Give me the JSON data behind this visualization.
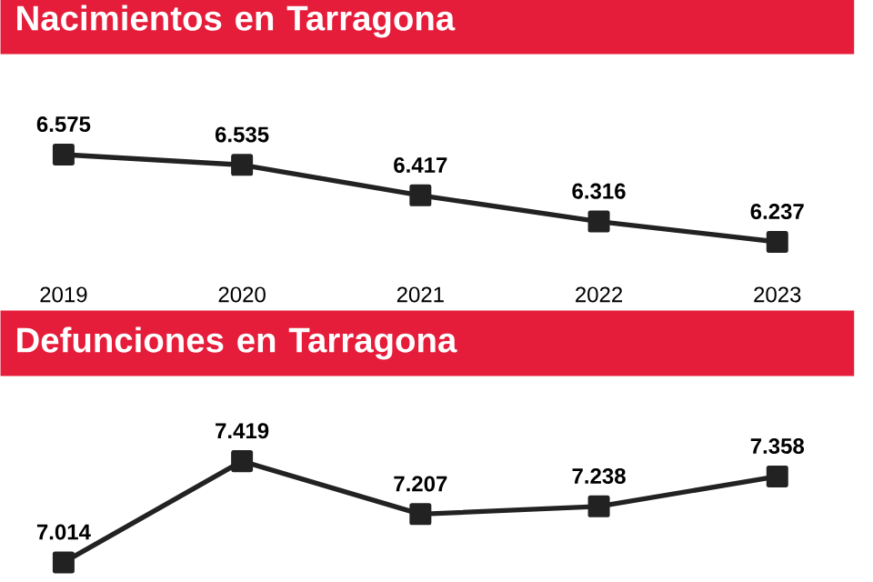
{
  "chart_data": [
    {
      "type": "line",
      "title": "Nacimientos en Tarragona",
      "categories": [
        "2019",
        "2020",
        "2021",
        "2022",
        "2023"
      ],
      "series": [
        {
          "color": "#222222",
          "values": [
            6575,
            6535,
            6417,
            6316,
            6237
          ],
          "value_labels": [
            "6.575",
            "6.535",
            "6.417",
            "6.316",
            "6.237"
          ]
        }
      ],
      "marker": "square",
      "line_style": "solid"
    },
    {
      "type": "line",
      "title": "Defunciones en Tarragona",
      "categories": [
        null,
        null,
        null,
        null,
        null
      ],
      "series": [
        {
          "color": "#222222",
          "values": [
            7014,
            7419,
            7207,
            7238,
            7358
          ],
          "value_labels": [
            "7.014",
            "7.419",
            "7.207",
            "7.238",
            "7.358"
          ]
        }
      ],
      "marker": "square",
      "line_style": "solid"
    }
  ]
}
